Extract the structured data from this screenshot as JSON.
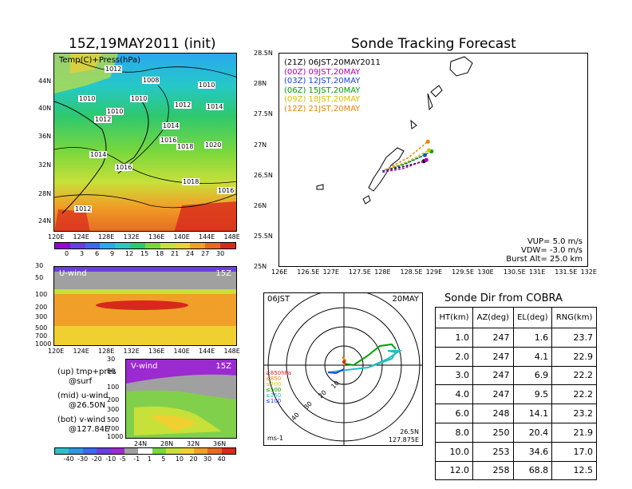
{
  "left_title": "15Z,19MAY2011 (init)",
  "right_title": "Sonde Tracking Forecast",
  "map_panel": {
    "label": "Temp(C)+Press(hPa)",
    "lat_ticks": [
      "44N",
      "40N",
      "36N",
      "32N",
      "28N",
      "24N"
    ],
    "lon_ticks": [
      "120E",
      "124E",
      "128E",
      "132E",
      "136E",
      "140E",
      "144E",
      "148E"
    ],
    "isobar_labels": [
      "1012",
      "1008",
      "1010",
      "1010",
      "1010",
      "1010",
      "1012",
      "1014",
      "1012",
      "1014",
      "1016",
      "1018",
      "1020",
      "1014",
      "1016",
      "1018",
      "1016",
      "1012"
    ]
  },
  "temp_colorbar": {
    "ticks": [
      "0",
      "3",
      "6",
      "9",
      "12",
      "15",
      "18",
      "21",
      "24",
      "27",
      "30"
    ],
    "colors": [
      "#9b00d4",
      "#6a3ee0",
      "#3d68f0",
      "#2aa8f0",
      "#26c8c8",
      "#2ec86e",
      "#7ad83c",
      "#c8e03a",
      "#f0d030",
      "#f0a028",
      "#e86a20",
      "#d8281c"
    ]
  },
  "u_panel": {
    "label": "U-wind",
    "time": "15Z",
    "p_ticks": [
      "30",
      "50",
      "100",
      "200",
      "300",
      "500",
      "700",
      "1000"
    ],
    "lon_ticks": [
      "120E",
      "124E",
      "128E",
      "132E",
      "136E",
      "140E",
      "144E",
      "148E"
    ]
  },
  "v_panel": {
    "label": "V-wind",
    "time": "15Z",
    "p_ticks": [
      "30",
      "50",
      "100",
      "200",
      "300",
      "500",
      "700",
      "1000"
    ],
    "lat_ticks": [
      "24N",
      "28N",
      "32N",
      "36N"
    ]
  },
  "notes": [
    {
      "k": "(up) tmp+pres",
      "v": "@surf"
    },
    {
      "k": "(mid) u-wind",
      "v": "@26.50N"
    },
    {
      "k": "(bot) v-wind",
      "v": "@127.84E"
    }
  ],
  "wind_colorbar": {
    "ticks": [
      "-40",
      "-30",
      "-20",
      "-10",
      "-5",
      "-1",
      "1",
      "5",
      "10",
      "20",
      "30",
      "40"
    ],
    "colors": [
      "#2ec0c8",
      "#2e98e0",
      "#3a6af0",
      "#6a3ee0",
      "#9b2ad0",
      "#a0a0a0",
      "#ffffff",
      "#7ad83c",
      "#c8e03a",
      "#f0d030",
      "#f0a028",
      "#e86a20",
      "#d8281c"
    ]
  },
  "track_panel": {
    "lat_ticks": [
      "28.5N",
      "28N",
      "27.5N",
      "27N",
      "26.5N",
      "26N",
      "25.5N",
      "25N"
    ],
    "lon_ticks": [
      "126E",
      "126.5E",
      "127E",
      "127.5E",
      "128E",
      "128.5E",
      "129E",
      "129.5E",
      "130E",
      "130.5E",
      "131E",
      "131.5E",
      "132E"
    ],
    "launches": [
      {
        "label": "(21Z)  06JST,20MAY2011",
        "color": "#000000"
      },
      {
        "label": "(00Z)  09JST,20MAY",
        "color": "#b000b0"
      },
      {
        "label": "(03Z)  12JST,20MAY",
        "color": "#2040e0"
      },
      {
        "label": "(06Z)  15JST,20MAY",
        "color": "#00a000"
      },
      {
        "label": "(09Z)  18JST,20MAY",
        "color": "#d8c000"
      },
      {
        "label": "(12Z)  21JST,20MAY",
        "color": "#f08000"
      }
    ],
    "params": [
      "VUP= 5.0 m/s",
      "VDW= -3.0 m/s",
      "Burst Alt= 25.0 km"
    ]
  },
  "polar_panel": {
    "left_label": "06JST",
    "right_label": "20MAY",
    "ring_labels": [
      "10",
      "20",
      "30",
      "40"
    ],
    "levels": [
      {
        "label": "≥850hPa",
        "color": "#e02020"
      },
      {
        "label": "≤850",
        "color": "#f08000"
      },
      {
        "label": "≤700",
        "color": "#d8c000"
      },
      {
        "label": "≤500",
        "color": "#00a000"
      },
      {
        "label": "≤250",
        "color": "#20c0c0"
      },
      {
        "label": "≤100",
        "color": "#2040e0"
      }
    ],
    "unit": "ms-1",
    "loc_lat": "26.5N",
    "loc_lon": "127.875E"
  },
  "sonde_table": {
    "title": "Sonde Dir from COBRA",
    "headers": [
      "HT(km)",
      "AZ(deg)",
      "EL(deg)",
      "RNG(km)"
    ],
    "rows": [
      [
        "1.0",
        "247",
        "1.6",
        "23.7"
      ],
      [
        "2.0",
        "247",
        "4.1",
        "22.9"
      ],
      [
        "3.0",
        "247",
        "6.9",
        "22.2"
      ],
      [
        "4.0",
        "247",
        "9.5",
        "22.2"
      ],
      [
        "6.0",
        "248",
        "14.1",
        "23.2"
      ],
      [
        "8.0",
        "250",
        "20.4",
        "21.9"
      ],
      [
        "10.0",
        "253",
        "34.6",
        "17.0"
      ],
      [
        "12.0",
        "258",
        "68.8",
        "12.5"
      ]
    ]
  },
  "chart_data": [
    {
      "type": "heatmap",
      "title": "15Z,19MAY2011 (init)",
      "subtitle": "Temp(C)+Press(hPa)",
      "xlim": [
        120,
        150
      ],
      "ylim": [
        22,
        47
      ]
    },
    {
      "type": "heatmap",
      "title": "U-wind",
      "xlim": [
        120,
        150
      ],
      "ylim": [
        1000,
        30
      ]
    },
    {
      "type": "heatmap",
      "title": "V-wind",
      "xlim": [
        21,
        38
      ],
      "ylim": [
        1000,
        30
      ]
    },
    {
      "type": "line",
      "title": "Sonde Tracking Forecast",
      "xlim": [
        126,
        132
      ],
      "ylim": [
        25,
        28.5
      ],
      "series": [
        {
          "name": "(21Z) 06JST,20MAY2011",
          "x": [
            128.0,
            128.4,
            128.8
          ],
          "y": [
            26.58,
            26.65,
            26.74
          ]
        },
        {
          "name": "(00Z) 09JST,20MAY",
          "x": [
            128.0,
            128.4,
            128.85
          ],
          "y": [
            26.56,
            26.62,
            26.76
          ]
        },
        {
          "name": "(03Z) 12JST,20MAY",
          "x": [
            128.0,
            128.4,
            128.82
          ],
          "y": [
            26.58,
            26.68,
            26.84
          ]
        },
        {
          "name": "(06Z) 15JST,20MAY",
          "x": [
            128.05,
            128.5,
            128.95
          ],
          "y": [
            26.6,
            26.72,
            26.9
          ]
        },
        {
          "name": "(09Z) 18JST,20MAY",
          "x": [
            128.05,
            128.5,
            128.9
          ],
          "y": [
            26.6,
            26.74,
            26.92
          ]
        },
        {
          "name": "(12Z) 21JST,20MAY",
          "x": [
            128.05,
            128.5,
            128.88
          ],
          "y": [
            26.6,
            26.8,
            27.06
          ]
        }
      ]
    }
  ]
}
